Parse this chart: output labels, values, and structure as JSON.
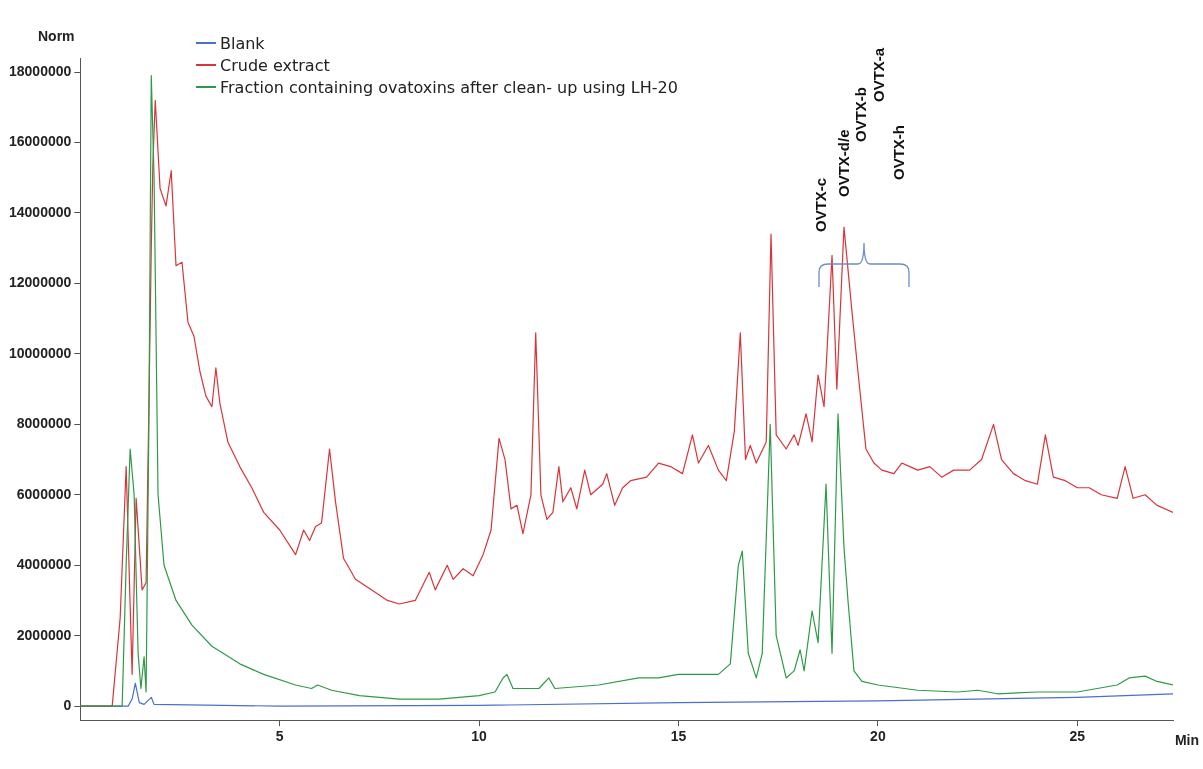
{
  "chart_data": {
    "type": "line",
    "xlabel": "Min",
    "ylabel": "Norm",
    "xlim": [
      0,
      27.4
    ],
    "xticks": [
      5,
      10,
      15,
      20,
      25
    ],
    "ylim": [
      -400000,
      18400000
    ],
    "yticks": [
      0,
      2000000,
      4000000,
      6000000,
      8000000,
      10000000,
      12000000,
      14000000,
      16000000,
      18000000
    ],
    "grid": false,
    "legend": "top left",
    "marker": "none",
    "line_style": "solid",
    "annotations": [
      "OVTX-c",
      "OVTX-d/e",
      "OVTX-b",
      "OVTX-a",
      "OVTX-h"
    ],
    "series": [
      {
        "name": "Blank",
        "color": "#4a6fd0",
        "x": [
          0,
          1.2,
          1.3,
          1.38,
          1.48,
          1.6,
          1.78,
          1.85,
          5,
          10,
          15,
          20,
          25,
          27.4
        ],
        "values": [
          0,
          0,
          200000,
          650000,
          100000,
          50000,
          250000,
          50000,
          0,
          20000,
          100000,
          150000,
          250000,
          350000
        ]
      },
      {
        "name": "Crude extract",
        "color": "#d9343a",
        "x": [
          0,
          0.8,
          1.0,
          1.15,
          1.3,
          1.4,
          1.55,
          1.65,
          1.72,
          1.78,
          1.82,
          1.88,
          2.0,
          2.15,
          2.28,
          2.4,
          2.55,
          2.7,
          2.85,
          3.0,
          3.15,
          3.3,
          3.4,
          3.5,
          3.7,
          4.0,
          4.3,
          4.6,
          5.0,
          5.4,
          5.6,
          5.75,
          5.9,
          6.05,
          6.25,
          6.4,
          6.6,
          6.9,
          7.3,
          7.7,
          8.0,
          8.4,
          8.75,
          8.9,
          9.2,
          9.35,
          9.6,
          9.85,
          10.1,
          10.3,
          10.5,
          10.65,
          10.8,
          10.95,
          11.1,
          11.3,
          11.42,
          11.55,
          11.7,
          11.85,
          12.0,
          12.1,
          12.3,
          12.45,
          12.65,
          12.8,
          13.1,
          13.2,
          13.4,
          13.6,
          13.8,
          14.2,
          14.5,
          14.8,
          15.1,
          15.35,
          15.5,
          15.75,
          16.0,
          16.2,
          16.4,
          16.55,
          16.68,
          16.8,
          16.95,
          17.2,
          17.32,
          17.45,
          17.7,
          17.9,
          18.0,
          18.2,
          18.35,
          18.5,
          18.65,
          18.85,
          18.97,
          19.15,
          19.35,
          19.5,
          19.7,
          19.9,
          20.1,
          20.4,
          20.6,
          20.8,
          21.0,
          21.3,
          21.6,
          21.9,
          22.3,
          22.6,
          22.9,
          23.1,
          23.4,
          23.7,
          24.0,
          24.2,
          24.4,
          24.7,
          25.0,
          25.3,
          25.6,
          26.0,
          26.2,
          26.4,
          26.7,
          27.0,
          27.4
        ],
        "values": [
          0,
          0,
          2500000,
          6800000,
          900000,
          5900000,
          3300000,
          3500000,
          8500000,
          13000000,
          15400000,
          17200000,
          14700000,
          14200000,
          15200000,
          12500000,
          12600000,
          10900000,
          10500000,
          9500000,
          8800000,
          8500000,
          9600000,
          8600000,
          7500000,
          6800000,
          6200000,
          5500000,
          5000000,
          4300000,
          5000000,
          4700000,
          5100000,
          5200000,
          7300000,
          5800000,
          4200000,
          3600000,
          3300000,
          3000000,
          2900000,
          3000000,
          3800000,
          3300000,
          4000000,
          3600000,
          3900000,
          3700000,
          4300000,
          5000000,
          7600000,
          7000000,
          5600000,
          5700000,
          4900000,
          6000000,
          10600000,
          6000000,
          5300000,
          5500000,
          6800000,
          5800000,
          6200000,
          5600000,
          6700000,
          6000000,
          6300000,
          6600000,
          5700000,
          6200000,
          6400000,
          6500000,
          6900000,
          6800000,
          6600000,
          7700000,
          6900000,
          7400000,
          6700000,
          6400000,
          7800000,
          10600000,
          7000000,
          7400000,
          6900000,
          7500000,
          13400000,
          7700000,
          7300000,
          7700000,
          7400000,
          8300000,
          7500000,
          9400000,
          8500000,
          12800000,
          9000000,
          13600000,
          11200000,
          9500000,
          7300000,
          6900000,
          6700000,
          6600000,
          6900000,
          6800000,
          6700000,
          6800000,
          6500000,
          6700000,
          6700000,
          7000000,
          8000000,
          7000000,
          6600000,
          6400000,
          6300000,
          7700000,
          6500000,
          6400000,
          6200000,
          6200000,
          6000000,
          5900000,
          6800000,
          5900000,
          6000000,
          5700000,
          5500000
        ]
      },
      {
        "name": "Fraction containing ovatoxins after clean- up using LH-20",
        "color": "#2e9a48",
        "x": [
          0,
          1.05,
          1.15,
          1.25,
          1.35,
          1.45,
          1.52,
          1.6,
          1.65,
          1.72,
          1.78,
          1.85,
          1.95,
          2.1,
          2.4,
          2.8,
          3.3,
          4.0,
          4.6,
          5.4,
          5.8,
          5.95,
          6.3,
          7.0,
          8.0,
          9.0,
          10.0,
          10.4,
          10.6,
          10.7,
          10.85,
          11.5,
          11.75,
          11.9,
          13.0,
          14.0,
          14.5,
          15.0,
          16.0,
          16.3,
          16.5,
          16.6,
          16.75,
          16.95,
          17.1,
          17.3,
          17.45,
          17.7,
          17.9,
          18.05,
          18.15,
          18.35,
          18.5,
          18.7,
          18.85,
          19.0,
          19.15,
          19.25,
          19.4,
          19.6,
          20.0,
          21.0,
          22.0,
          22.5,
          23.0,
          24.0,
          25.0,
          26.0,
          26.3,
          26.7,
          27.0,
          27.4
        ],
        "values": [
          0,
          0,
          4000000,
          7300000,
          6000000,
          1500000,
          500000,
          1400000,
          400000,
          8000000,
          17900000,
          15000000,
          6000000,
          4000000,
          3000000,
          2300000,
          1700000,
          1200000,
          900000,
          600000,
          500000,
          600000,
          450000,
          300000,
          200000,
          200000,
          300000,
          400000,
          800000,
          900000,
          500000,
          500000,
          800000,
          500000,
          600000,
          800000,
          800000,
          900000,
          900000,
          1200000,
          4000000,
          4400000,
          1500000,
          800000,
          1500000,
          8000000,
          2000000,
          800000,
          1000000,
          1600000,
          1000000,
          2700000,
          1800000,
          6300000,
          1500000,
          8300000,
          4500000,
          3000000,
          1000000,
          700000,
          600000,
          450000,
          400000,
          450000,
          350000,
          400000,
          400000,
          600000,
          800000,
          850000,
          700000,
          600000
        ]
      }
    ]
  }
}
